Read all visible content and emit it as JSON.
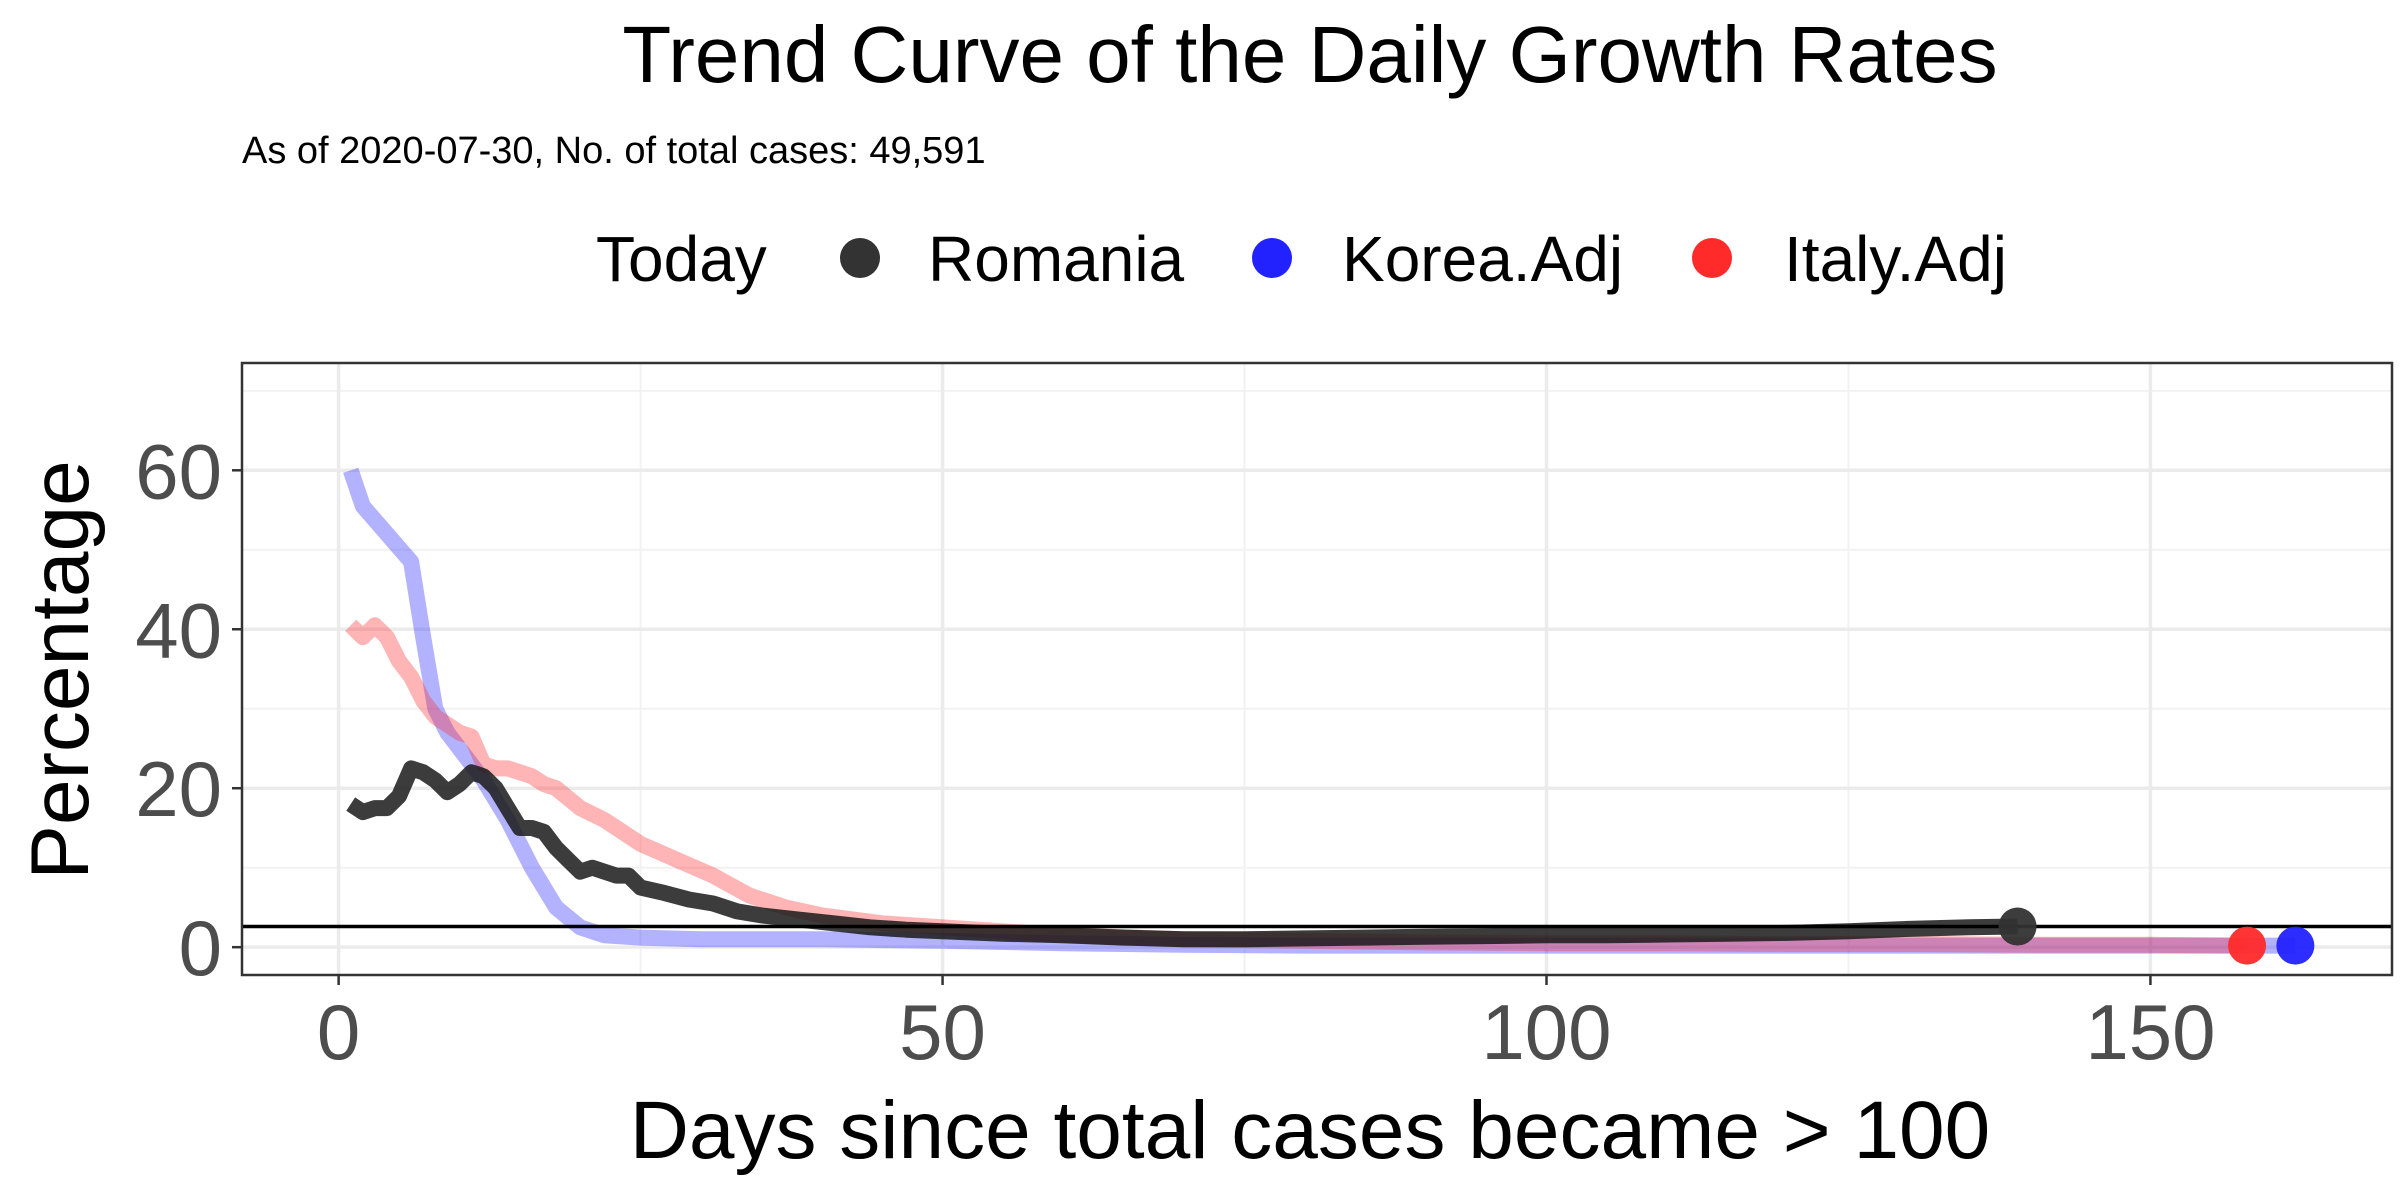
{
  "chart_data": {
    "type": "line",
    "title": "Trend Curve of the Daily Growth Rates",
    "subtitle": "As of 2020-07-30, No. of total cases: 49,591",
    "xlabel": "Days since total cases became > 100",
    "ylabel": "Percentage",
    "xlim": [
      -8,
      170
    ],
    "ylim": [
      -3.5,
      73.5
    ],
    "x_ticks": [
      0,
      50,
      100,
      150
    ],
    "x_tick_labels": [
      "0",
      "50",
      "100",
      "150"
    ],
    "y_ticks": [
      0,
      20,
      40,
      60
    ],
    "y_tick_labels": [
      "0",
      "20",
      "40",
      "60"
    ],
    "grid": true,
    "legend": {
      "position": "top",
      "title": "Today",
      "entries": [
        {
          "label": "Romania",
          "color": "#333333"
        },
        {
          "label": "Korea.Adj",
          "color": "#2222ff"
        },
        {
          "label": "Italy.Adj",
          "color": "#ff2a2a"
        }
      ]
    },
    "reference_line": {
      "y": 2.6,
      "color": "#000000"
    },
    "series": [
      {
        "name": "Korea.Adj",
        "color": "#2222ff",
        "opacity": 0.35,
        "x": [
          1,
          2,
          4,
          6,
          7,
          8,
          9,
          10,
          12,
          14,
          16,
          18,
          20,
          22,
          25,
          30,
          40,
          50,
          60,
          70,
          80,
          90,
          100,
          110,
          120,
          130,
          140,
          150,
          158,
          162
        ],
        "y": [
          60,
          55.5,
          52,
          48.5,
          39,
          30,
          27,
          25,
          21,
          16,
          10,
          5,
          2.5,
          1.5,
          1.2,
          1.0,
          1.0,
          0.8,
          0.5,
          0.3,
          0.2,
          0.2,
          0.2,
          0.2,
          0.2,
          0.2,
          0.2,
          0.2,
          0.2,
          0.2
        ]
      },
      {
        "name": "Italy.Adj",
        "color": "#ff2a2a",
        "opacity": 0.35,
        "x": [
          1,
          2,
          3,
          4,
          5,
          6,
          7,
          8,
          9,
          10,
          11,
          12,
          13,
          14,
          15,
          16,
          17,
          18,
          20,
          22,
          25,
          28,
          31,
          34,
          37,
          40,
          45,
          50,
          55,
          60,
          70,
          80,
          90,
          100,
          110,
          120,
          130,
          140,
          150,
          158
        ],
        "y": [
          40.5,
          39,
          40.5,
          39,
          36,
          34,
          31,
          29,
          28,
          27,
          26.5,
          23,
          22.5,
          22.5,
          22,
          21.5,
          20.5,
          20,
          17.5,
          16,
          13,
          11,
          9,
          6.5,
          5,
          4,
          3.0,
          2.5,
          2.0,
          1.5,
          1.0,
          0.8,
          0.6,
          0.5,
          0.5,
          0.4,
          0.4,
          0.3,
          0.3,
          0.2
        ]
      },
      {
        "name": "Romania",
        "color": "#1a1a1a",
        "opacity": 0.85,
        "x": [
          1,
          2,
          3,
          4,
          5,
          6,
          7,
          8,
          9,
          10,
          11,
          12,
          13,
          14,
          15,
          16,
          17,
          18,
          19,
          20,
          21,
          22,
          23,
          24,
          25,
          27,
          29,
          31,
          33,
          35,
          38,
          41,
          44,
          47,
          50,
          55,
          60,
          65,
          70,
          75,
          80,
          85,
          90,
          95,
          100,
          105,
          110,
          115,
          120,
          125,
          130,
          135,
          139
        ],
        "y": [
          18,
          17,
          17.5,
          17.5,
          19,
          22.5,
          22,
          21,
          19.5,
          20.5,
          22,
          21.5,
          20,
          17.5,
          15,
          15,
          14.5,
          12.5,
          11,
          9.5,
          10,
          9.5,
          9,
          9,
          7.5,
          6.8,
          6.0,
          5.5,
          4.5,
          4.0,
          3.5,
          3.0,
          2.5,
          2.2,
          2.0,
          1.7,
          1.5,
          1.2,
          1.0,
          1.0,
          1.1,
          1.2,
          1.3,
          1.4,
          1.5,
          1.5,
          1.6,
          1.7,
          1.8,
          2.0,
          2.3,
          2.5,
          2.6
        ]
      }
    ],
    "today_points": [
      {
        "name": "Romania",
        "x": 139,
        "y": 2.6,
        "color": "#333333"
      },
      {
        "name": "Italy.Adj",
        "x": 158,
        "y": 0.2,
        "color": "#ff2a2a"
      },
      {
        "name": "Korea.Adj",
        "x": 162,
        "y": 0.2,
        "color": "#2222ff"
      }
    ]
  }
}
